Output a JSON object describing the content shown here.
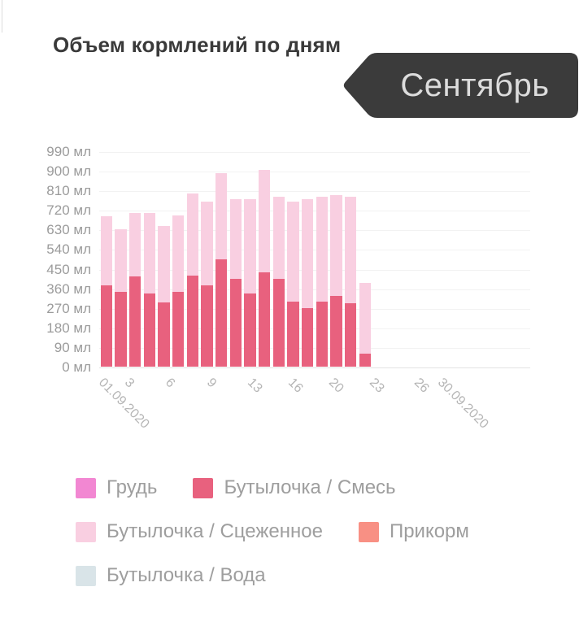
{
  "header": {
    "title": "Объем кормлений по дням",
    "month_tag": "Сентябрь"
  },
  "colors": {
    "tag_background": "#3b3b3b",
    "tag_text": "#dcdcdc",
    "title_text": "#3a3a3a",
    "axis_label": "#9b9b9b",
    "xaxis_label": "#b5b5b5"
  },
  "chart_data": {
    "type": "bar",
    "stacked": true,
    "title": "Объем кормлений по дням",
    "unit": "мл",
    "x_days_total": 30,
    "x_axis_range": [
      "01.09.2020",
      "30.09.2020"
    ],
    "categories": [
      1,
      2,
      3,
      4,
      5,
      6,
      7,
      8,
      9,
      10,
      11,
      12,
      13,
      14,
      15,
      16,
      17,
      18,
      19
    ],
    "series": [
      {
        "name": "Бутылочка / Смесь",
        "color": "#e8617e",
        "values": [
          375,
          345,
          415,
          335,
          295,
          345,
          420,
          375,
          495,
          405,
          335,
          435,
          405,
          300,
          270,
          300,
          325,
          290,
          60
        ]
      },
      {
        "name": "Бутылочка / Сцеженное",
        "color": "#f9cfe1",
        "values": [
          315,
          285,
          290,
          370,
          350,
          350,
          375,
          385,
          395,
          365,
          435,
          470,
          375,
          460,
          500,
          480,
          465,
          490,
          325
        ]
      }
    ],
    "totals": [
      690,
      630,
      705,
      705,
      645,
      695,
      795,
      760,
      890,
      770,
      770,
      905,
      780,
      760,
      770,
      780,
      790,
      780,
      385
    ],
    "ylim": [
      0,
      990
    ],
    "ytick_step": 90,
    "ytick_labels": [
      "990 мл",
      "900 мл",
      "810 мл",
      "720 мл",
      "630 мл",
      "540 мл",
      "450 мл",
      "360 мл",
      "270 мл",
      "180 мл",
      "90 мл",
      "0 мл"
    ],
    "xtick_labels": [
      "01.09.2020",
      "3",
      "6",
      "9",
      "13",
      "16",
      "20",
      "23",
      "26",
      "30.09.2020"
    ],
    "grid": "horizontal",
    "legend_position": "bottom",
    "legend": [
      {
        "label": "Грудь",
        "color": "#f287d2"
      },
      {
        "label": "Бутылочка / Смесь",
        "color": "#e8617e"
      },
      {
        "label": "Бутылочка / Сцеженное",
        "color": "#f9cfe1"
      },
      {
        "label": "Прикорм",
        "color": "#f89084"
      },
      {
        "label": "Бутылочка / Вода",
        "color": "#d9e4e8"
      }
    ]
  }
}
